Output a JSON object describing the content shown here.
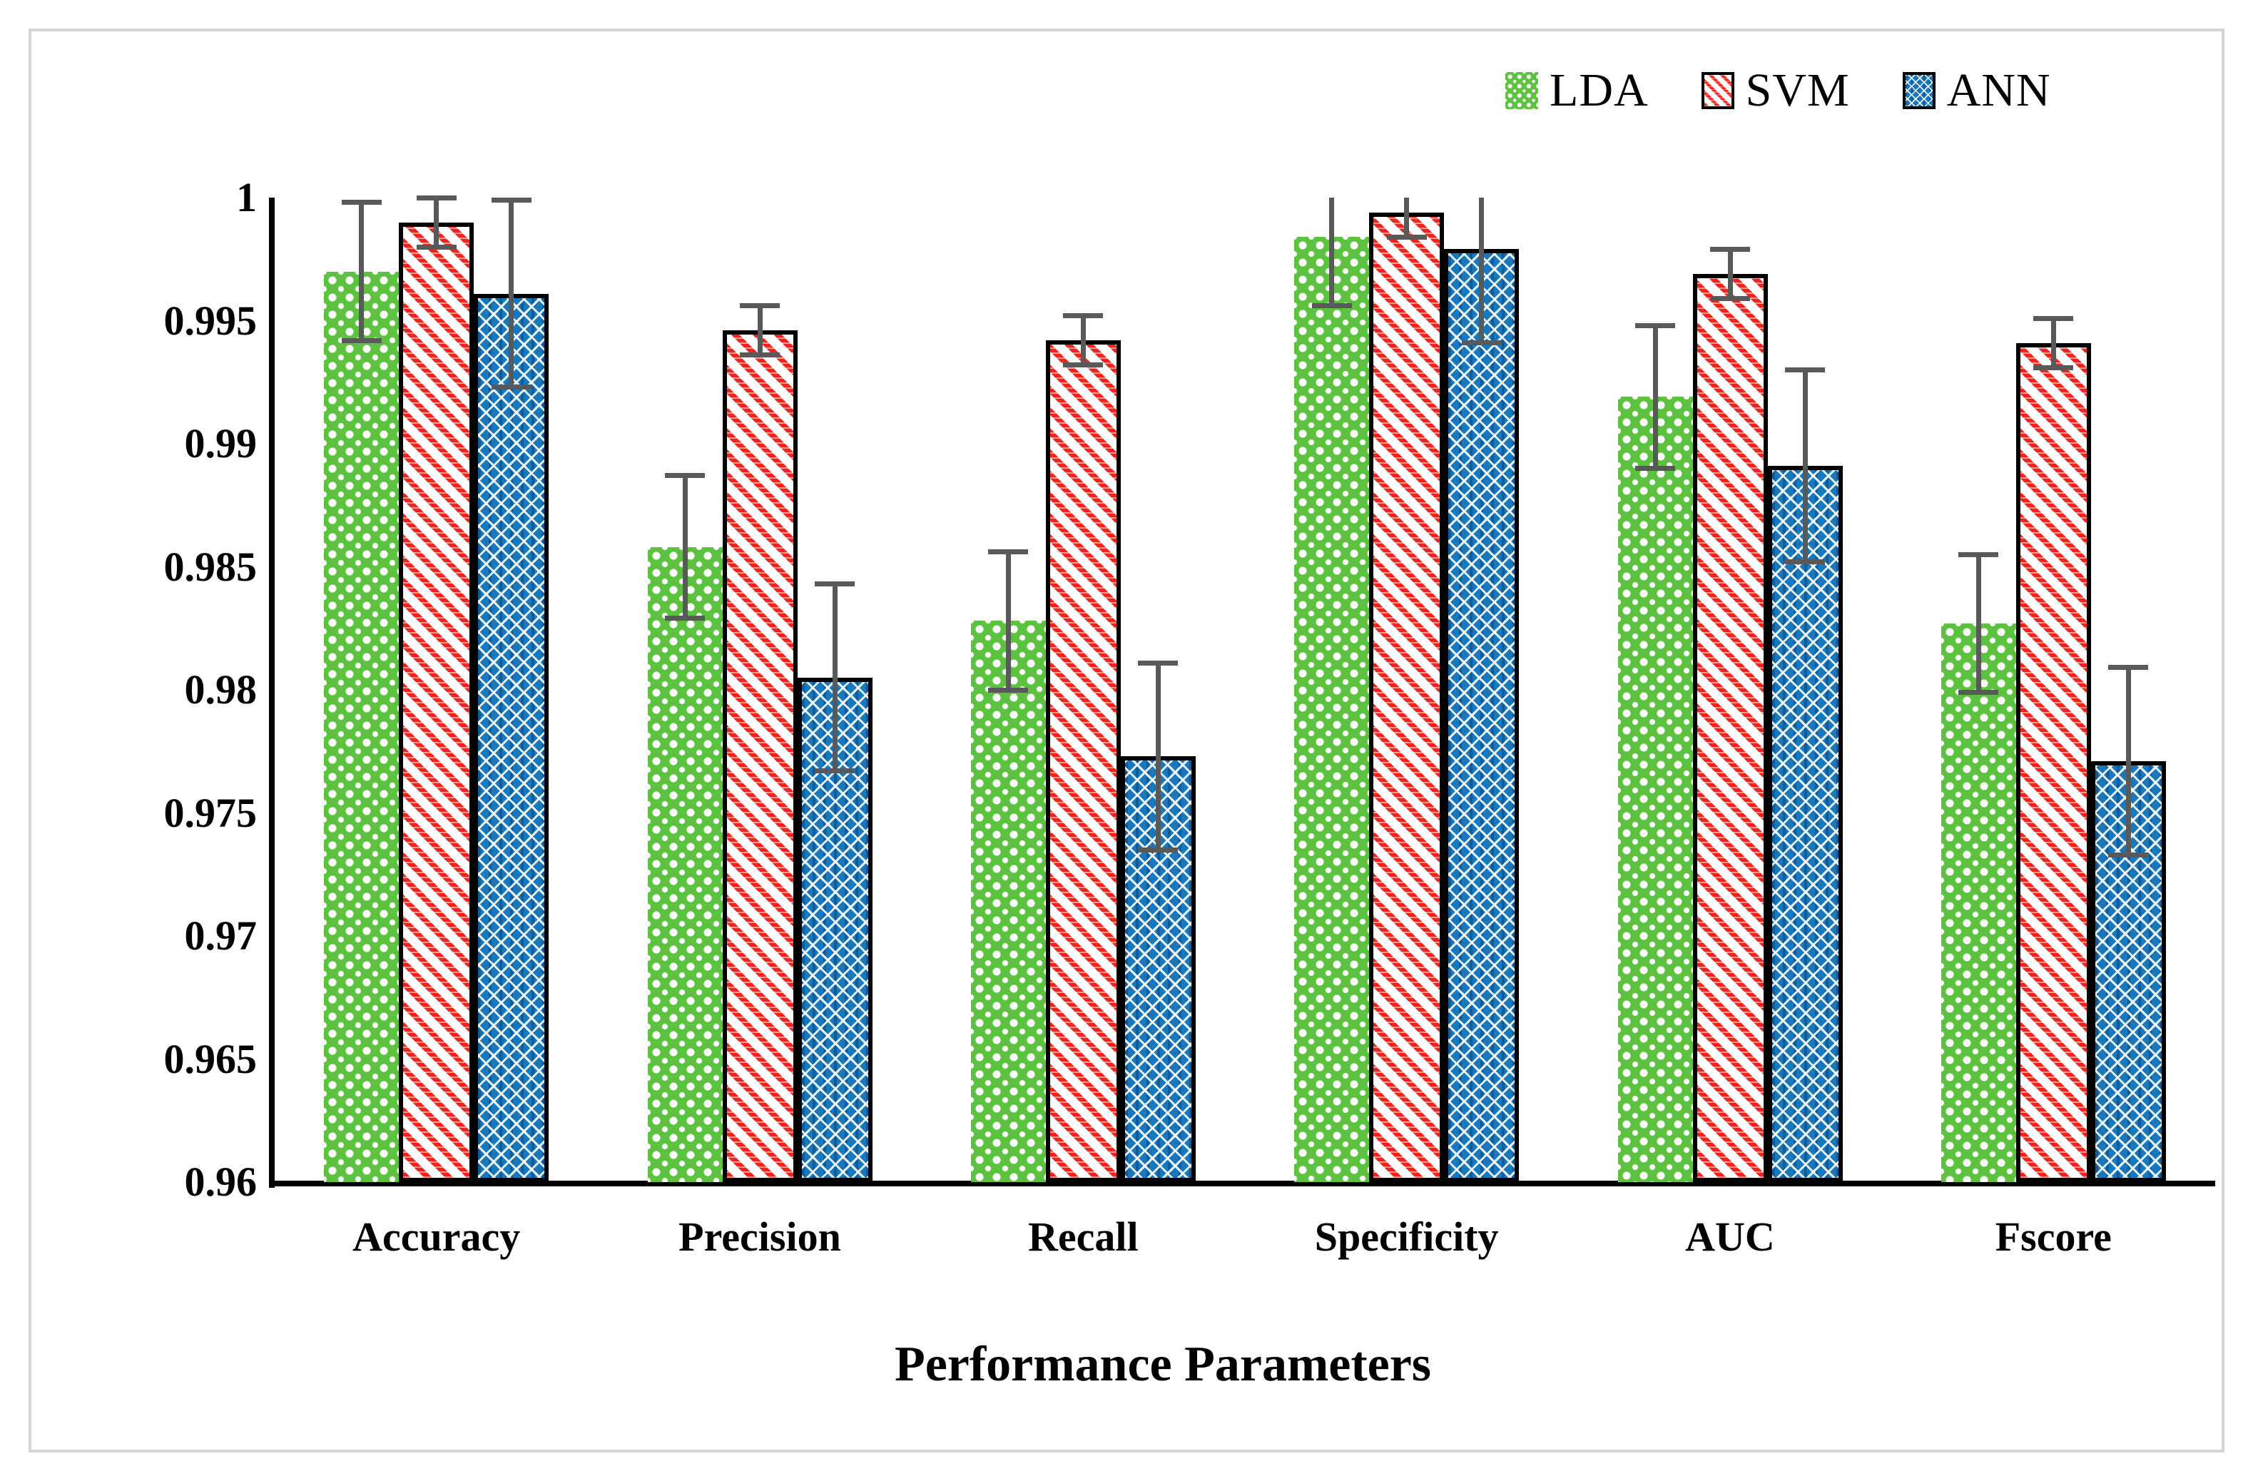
{
  "figure": {
    "background": "#ffffff",
    "border_color": "#d4d4d4"
  },
  "chart_data": {
    "type": "bar",
    "title": "",
    "xlabel": "Performance Parameters",
    "ylabel": "",
    "ylim": [
      0.96,
      1.0
    ],
    "grid": false,
    "legend_position": "top-right",
    "error_bar_color": "#595959",
    "bar_border_color": "#000000",
    "yticks": [
      1,
      0.995,
      0.99,
      0.985,
      0.98,
      0.975,
      0.97,
      0.965,
      0.96
    ],
    "categories": [
      "Accuracy",
      "Precision",
      "Recall",
      "Specificity",
      "AUC",
      "Fscore"
    ],
    "series": [
      {
        "name": "LDA",
        "color": "#5cc23f",
        "pattern": "dotted",
        "border": false,
        "values": [
          0.997,
          0.9858,
          0.9828,
          0.9984,
          0.9919,
          0.9827
        ],
        "errors": [
          0.0028,
          0.0029,
          0.0028,
          0.0028,
          0.0029,
          0.0028
        ]
      },
      {
        "name": "SVM",
        "color": "#f6211a",
        "pattern": "diagonal-hatch",
        "border": true,
        "values": [
          0.999,
          0.9946,
          0.9942,
          0.9994,
          0.9969,
          0.9941
        ],
        "errors": [
          0.001,
          0.001,
          0.001,
          0.001,
          0.001,
          0.001
        ]
      },
      {
        "name": "ANN",
        "color": "#1878be",
        "pattern": "crosshatch",
        "border": true,
        "values": [
          0.9961,
          0.9805,
          0.9773,
          0.9979,
          0.9891,
          0.9771
        ],
        "errors": [
          0.0038,
          0.0038,
          0.0038,
          0.0038,
          0.0039,
          0.0038
        ]
      }
    ]
  }
}
